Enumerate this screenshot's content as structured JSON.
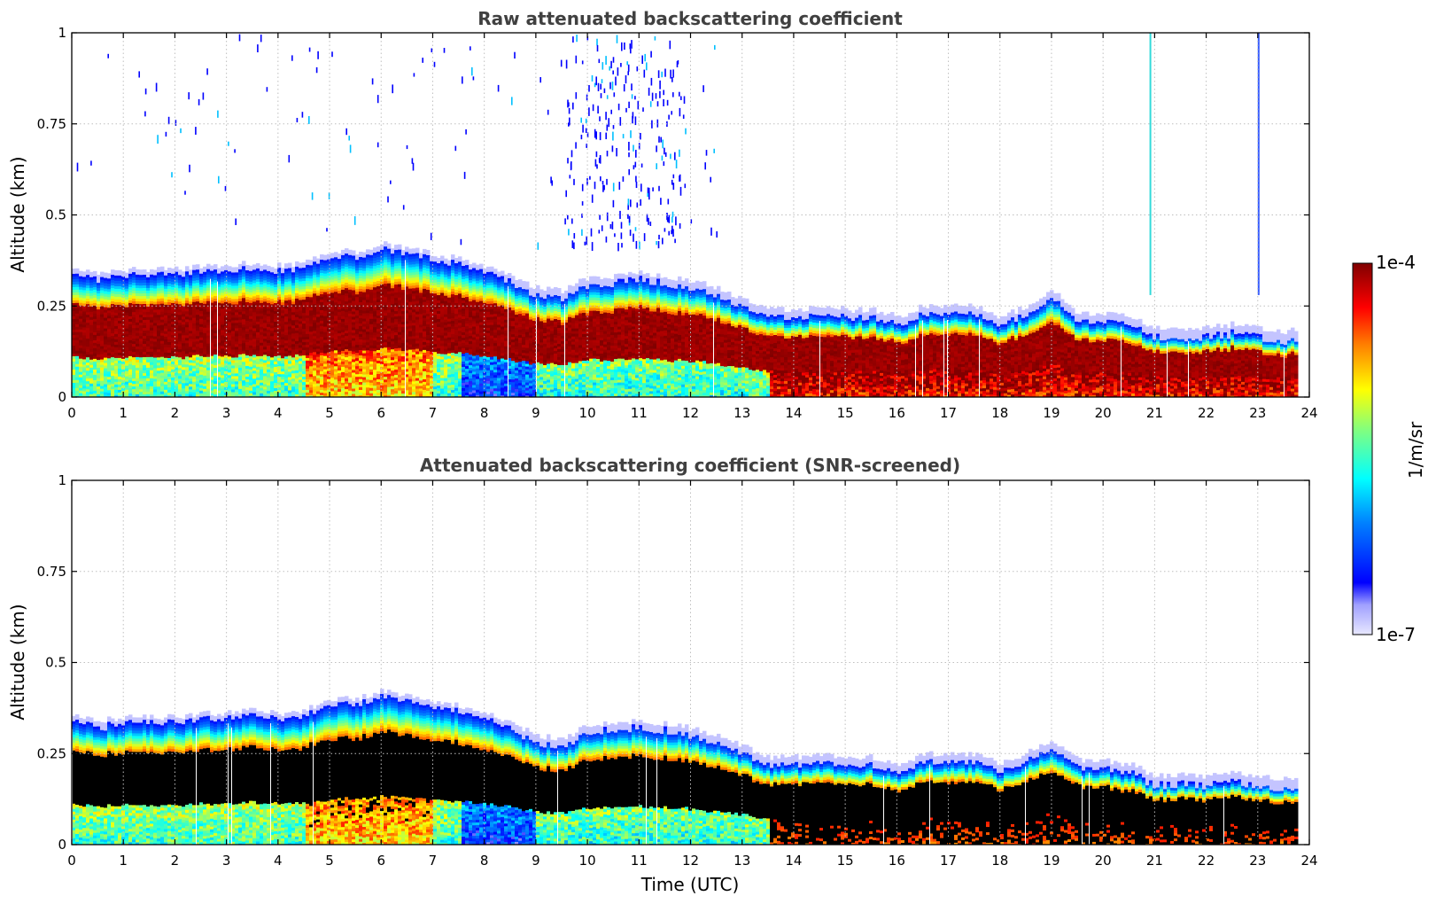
{
  "colors": {
    "black_core": "#000000",
    "grid": "#bfbfbf",
    "title": "#404040"
  },
  "chart_data": [
    {
      "id": "raw",
      "type": "heatmap",
      "title": "Raw attenuated backscattering coefficient",
      "xlabel": "",
      "ylabel": "Altitude (km)",
      "xlim": [
        0,
        24
      ],
      "ylim": [
        0,
        1
      ],
      "xticks": [
        0,
        1,
        2,
        3,
        4,
        5,
        6,
        7,
        8,
        9,
        10,
        11,
        12,
        13,
        14,
        15,
        16,
        17,
        18,
        19,
        20,
        21,
        22,
        23,
        24
      ],
      "yticks": [
        0,
        0.25,
        0.5,
        0.75,
        1
      ],
      "ytick_labels": [
        "0",
        "0.25",
        "0.5",
        "0.75",
        "1"
      ],
      "grid": true,
      "data_end_hour": 23.75,
      "layer_top_km": {
        "time": [
          0,
          0.5,
          1,
          1.5,
          2,
          2.5,
          3,
          3.5,
          4,
          4.5,
          5,
          5.5,
          6,
          6.5,
          7,
          7.5,
          8,
          8.5,
          9,
          9.5,
          10,
          10.5,
          11,
          11.5,
          12,
          12.5,
          13,
          13.5,
          14,
          14.5,
          15,
          15.5,
          16,
          16.5,
          17,
          17.5,
          18,
          18.5,
          19,
          19.5,
          20,
          20.5,
          21,
          21.5,
          22,
          22.5,
          23,
          23.5,
          23.75
        ],
        "top": [
          0.32,
          0.31,
          0.32,
          0.32,
          0.32,
          0.33,
          0.33,
          0.34,
          0.33,
          0.34,
          0.37,
          0.37,
          0.39,
          0.38,
          0.36,
          0.35,
          0.33,
          0.3,
          0.27,
          0.26,
          0.3,
          0.3,
          0.31,
          0.3,
          0.29,
          0.27,
          0.24,
          0.21,
          0.21,
          0.22,
          0.21,
          0.21,
          0.19,
          0.22,
          0.22,
          0.22,
          0.19,
          0.22,
          0.26,
          0.2,
          0.2,
          0.19,
          0.16,
          0.16,
          0.16,
          0.17,
          0.16,
          0.15,
          0.16
        ]
      },
      "black_core": false,
      "note_events": [
        "Scattered weak returns above 0.5 km between 0 and 13 UTC",
        "Thin vertical features near 20.9 UTC and 23 UTC up to 1 km"
      ]
    },
    {
      "id": "screened",
      "type": "heatmap",
      "title": "Attenuated backscattering coefficient (SNR-screened)",
      "xlabel": "Time (UTC)",
      "ylabel": "Altitude (km)",
      "xlim": [
        0,
        24
      ],
      "ylim": [
        0,
        1
      ],
      "xticks": [
        0,
        1,
        2,
        3,
        4,
        5,
        6,
        7,
        8,
        9,
        10,
        11,
        12,
        13,
        14,
        15,
        16,
        17,
        18,
        19,
        20,
        21,
        22,
        23,
        24
      ],
      "yticks": [
        0,
        0.25,
        0.5,
        0.75,
        1
      ],
      "ytick_labels": [
        "0",
        "0.25",
        "0.5",
        "0.75",
        "1"
      ],
      "grid": true,
      "data_end_hour": 23.75,
      "layer_top_km": {
        "time": [
          0,
          0.5,
          1,
          1.5,
          2,
          2.5,
          3,
          3.5,
          4,
          4.5,
          5,
          5.5,
          6,
          6.5,
          7,
          7.5,
          8,
          8.5,
          9,
          9.5,
          10,
          10.5,
          11,
          11.5,
          12,
          12.5,
          13,
          13.5,
          14,
          14.5,
          15,
          15.5,
          16,
          16.5,
          17,
          17.5,
          18,
          18.5,
          19,
          19.5,
          20,
          20.5,
          21,
          21.5,
          22,
          22.5,
          23,
          23.5,
          23.75
        ],
        "top": [
          0.32,
          0.31,
          0.32,
          0.32,
          0.32,
          0.33,
          0.33,
          0.34,
          0.33,
          0.34,
          0.37,
          0.37,
          0.39,
          0.38,
          0.36,
          0.35,
          0.33,
          0.3,
          0.27,
          0.26,
          0.3,
          0.3,
          0.31,
          0.3,
          0.29,
          0.27,
          0.24,
          0.21,
          0.21,
          0.22,
          0.21,
          0.21,
          0.19,
          0.22,
          0.22,
          0.22,
          0.19,
          0.22,
          0.26,
          0.2,
          0.2,
          0.19,
          0.16,
          0.16,
          0.16,
          0.17,
          0.16,
          0.15,
          0.16
        ]
      },
      "black_core": true,
      "note_events": [
        "Saturated/screened core shown in black"
      ]
    }
  ],
  "colorbar": {
    "max_label": "1e-4",
    "min_label": "1e-7",
    "unit_label": "1/m/sr",
    "scale": "log",
    "range": [
      1e-07,
      0.0001
    ]
  }
}
